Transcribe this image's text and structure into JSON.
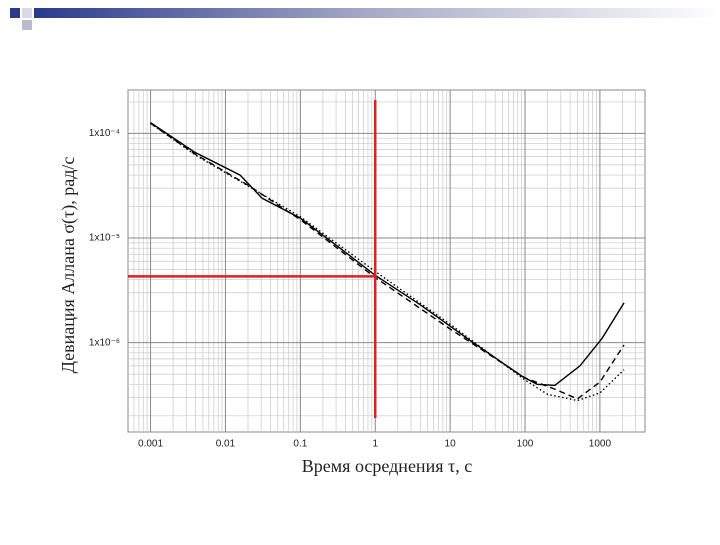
{
  "chart_data": {
    "type": "line",
    "xlabel": "Время осреднения τ, с",
    "ylabel": "Девиация Аллана σ(τ), рад/с",
    "xscale": "log",
    "yscale": "log",
    "xlim": [
      0.0005,
      4000
    ],
    "ylim": [
      1.4e-07,
      0.00026
    ],
    "xticks": [
      0.001,
      0.01,
      0.1,
      1,
      10,
      100,
      1000
    ],
    "yticks": [
      {
        "value": 0.0001,
        "label": "1x10⁻⁴"
      },
      {
        "value": 1e-05,
        "label": "1x10⁻⁵"
      },
      {
        "value": 1e-06,
        "label": "1x10⁻⁶"
      }
    ],
    "grid": true,
    "series": [
      {
        "color": "#000000",
        "dash": "solid",
        "x": [
          0.001,
          0.0039,
          0.0157,
          0.031,
          0.1,
          0.34,
          1,
          4,
          18.5,
          90,
          145,
          250,
          540,
          1070,
          2100
        ],
        "values": [
          0.000127,
          6.6e-05,
          4e-05,
          2.4e-05,
          1.55e-05,
          8e-06,
          4.4e-06,
          2.3e-06,
          1.05e-06,
          4.8e-07,
          4e-07,
          3.9e-07,
          6e-07,
          1.1e-06,
          2.4e-06
        ]
      },
      {
        "color": "#000000",
        "dash": "dashed",
        "x": [
          0.001,
          0.004,
          0.02,
          0.1,
          1,
          10,
          100,
          250,
          500,
          1000,
          2100
        ],
        "values": [
          0.000125,
          6.3e-05,
          3.2e-05,
          1.5e-05,
          4.2e-06,
          1.35e-06,
          4.6e-07,
          3.6e-07,
          2.9e-07,
          4.2e-07,
          9.5e-07
        ]
      },
      {
        "color": "#000000",
        "dash": "dotted",
        "x": [
          0.001,
          0.004,
          0.1,
          1,
          10,
          100,
          200,
          500,
          1000,
          2100
        ],
        "values": [
          0.000125,
          6.2e-05,
          1.6e-05,
          4.8e-06,
          1.5e-06,
          4.4e-07,
          3.2e-07,
          2.8e-07,
          3.3e-07,
          5.5e-07
        ]
      }
    ],
    "reference_lines": {
      "x": 1,
      "y": 4.3e-06,
      "color": "#e02020"
    }
  }
}
